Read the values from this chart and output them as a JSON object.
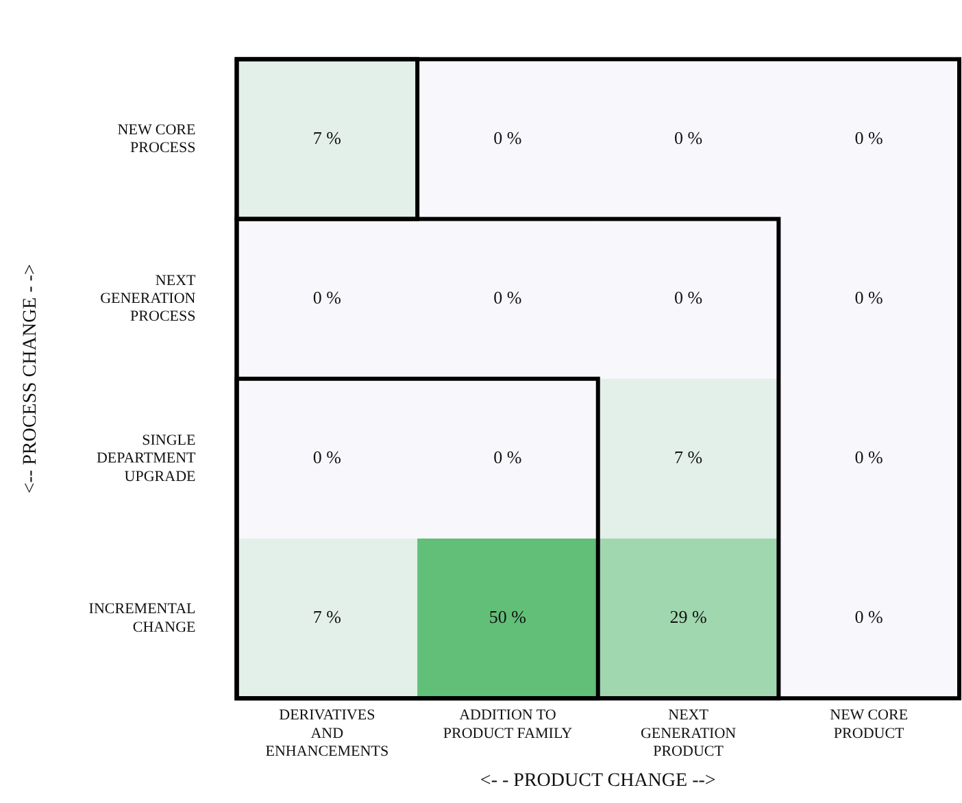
{
  "chart_data": {
    "type": "heatmap",
    "xlabel": "<- - PRODUCT CHANGE -->",
    "ylabel": "<-- PROCESS CHANGE - ->",
    "categories": [
      "DERIVATIVES AND ENHANCEMENTS",
      "ADDITION TO PRODUCT FAMILY",
      "NEXT GENERATION PRODUCT",
      "NEW CORE PRODUCT"
    ],
    "y_categories": [
      "NEW CORE PROCESS",
      "NEXT GENERATION PROCESS",
      "SINGLE DEPARTMENT UPGRADE",
      "INCREMENTAL CHANGE"
    ],
    "cells": [
      [
        7,
        0,
        0,
        0
      ],
      [
        0,
        0,
        0,
        0
      ],
      [
        0,
        0,
        7,
        0
      ],
      [
        7,
        50,
        29,
        0
      ]
    ],
    "cell_labels": [
      [
        "7 %",
        "0 %",
        "0 %",
        "0 %"
      ],
      [
        "0 %",
        "0 %",
        "0 %",
        "0 %"
      ],
      [
        "0 %",
        "0 %",
        "7 %",
        "0 %"
      ],
      [
        "7 %",
        "50 %",
        "29 %",
        "0 %"
      ]
    ]
  }
}
